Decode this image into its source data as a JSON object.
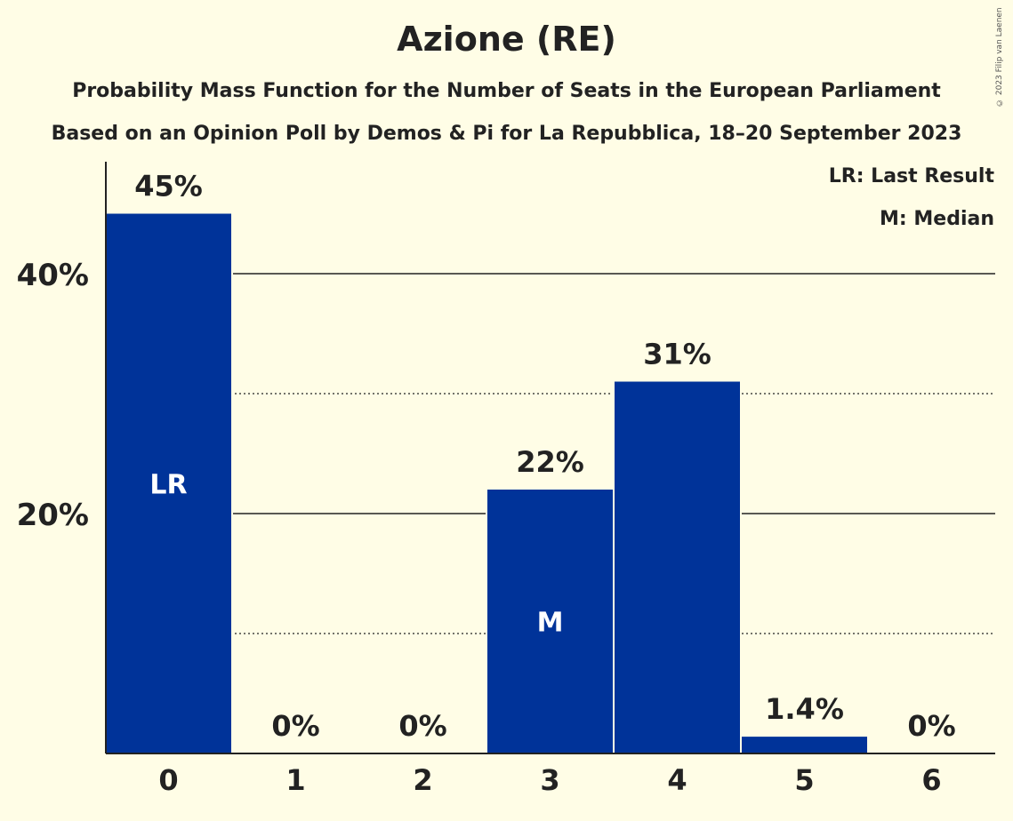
{
  "chart_data": {
    "type": "bar",
    "title": "Azione (RE)",
    "subtitle": [
      "Probability Mass Function for the Number of Seats in the European Parliament",
      "Based on an Opinion Poll by Demos & Pi for La Repubblica, 18–20 September 2023"
    ],
    "categories": [
      "0",
      "1",
      "2",
      "3",
      "4",
      "5",
      "6"
    ],
    "values": [
      45,
      0,
      0,
      22,
      31,
      1.4,
      0
    ],
    "value_labels": [
      "45%",
      "0%",
      "0%",
      "22%",
      "31%",
      "1.4%",
      "0%"
    ],
    "bar_markers": {
      "0": "LR",
      "3": "M"
    },
    "ylim": [
      0,
      49
    ],
    "yticks": [
      20,
      40
    ],
    "ytick_labels": [
      "20%",
      "40%"
    ],
    "minor_gridlines": [
      10,
      30
    ],
    "legend": [
      "LR: Last Result",
      "M: Median"
    ],
    "legend_position": "top-right",
    "bar_color": "#003399",
    "xlabel": "",
    "ylabel": ""
  },
  "copyright": "© 2023 Filip van Laenen"
}
